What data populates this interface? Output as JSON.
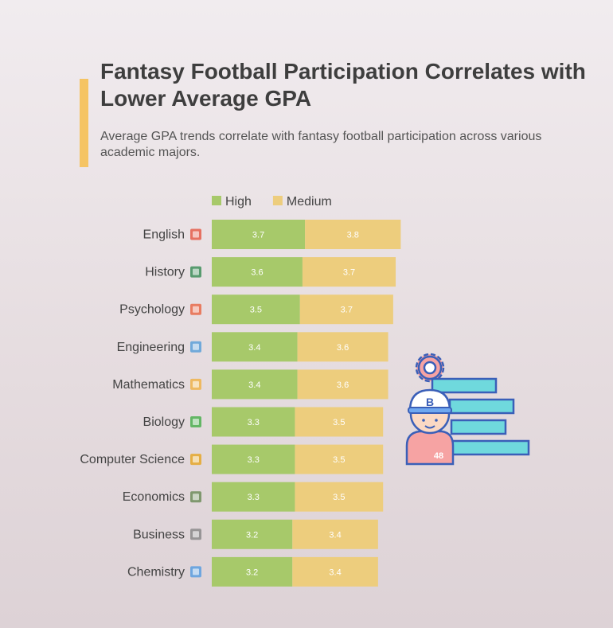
{
  "header": {
    "title": "Fantasy Football Participation Correlates with Lower Average GPA",
    "subtitle": "Average GPA trends correlate with fantasy football participation across various academic majors."
  },
  "colors": {
    "high": "#a7c96a",
    "medium": "#edcd7d",
    "accent": "#f5c463",
    "title": "#3e3e3e",
    "value_label": "#ffffff"
  },
  "illustration": {
    "cap_letter": "B",
    "jersey_number": "48",
    "icons": [
      "gear-icon",
      "baseball-player-icon"
    ]
  },
  "chart_data": {
    "type": "bar",
    "orientation": "horizontal",
    "stacked": true,
    "title": "",
    "xlabel": "",
    "ylabel": "",
    "legend_position": "top",
    "grid": false,
    "categories": [
      "English",
      "History",
      "Psychology",
      "Engineering",
      "Mathematics",
      "Biology",
      "Computer Science",
      "Economics",
      "Business",
      "Chemistry"
    ],
    "category_icons": [
      "book-icon",
      "scroll-icon",
      "brain-icon",
      "wrench-icon",
      "abacus-icon",
      "dna-icon",
      "computer-icon",
      "money-icon",
      "briefcase-icon",
      "flask-icon"
    ],
    "series": [
      {
        "name": "High",
        "color": "#a7c96a",
        "values": [
          3.7,
          3.6,
          3.5,
          3.4,
          3.4,
          3.3,
          3.3,
          3.3,
          3.2,
          3.2
        ]
      },
      {
        "name": "Medium",
        "color": "#edcd7d",
        "values": [
          3.8,
          3.7,
          3.7,
          3.6,
          3.6,
          3.5,
          3.5,
          3.5,
          3.4,
          3.4
        ]
      }
    ]
  }
}
